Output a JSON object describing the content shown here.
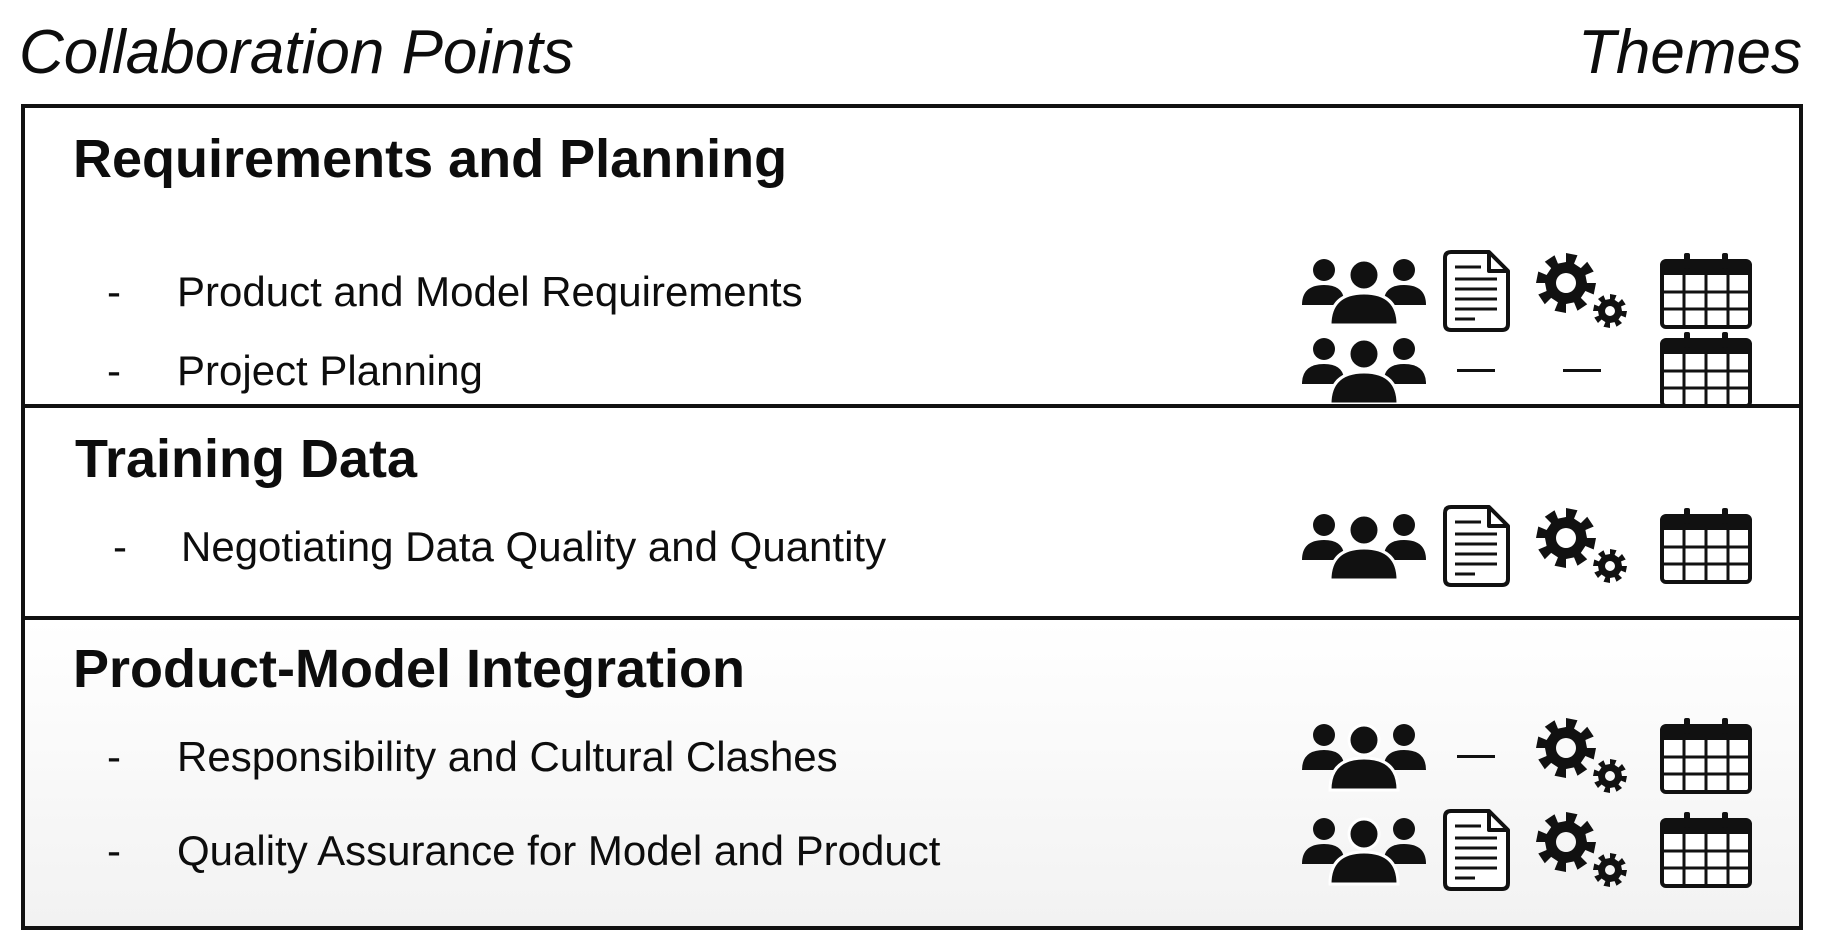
{
  "header": {
    "left_title": "Collaboration Points",
    "right_title": "Themes"
  },
  "sections": [
    {
      "title": "Requirements and Planning",
      "items": [
        {
          "bullet": "-",
          "label": "Product and Model Requirements",
          "themes": {
            "people": true,
            "document": true,
            "gears": true,
            "calendar": true
          }
        },
        {
          "bullet": "-",
          "label": "Project Planning",
          "themes": {
            "people": true,
            "document": false,
            "gears": false,
            "calendar": true
          }
        }
      ]
    },
    {
      "title": "Training Data",
      "items": [
        {
          "bullet": "-",
          "label": "Negotiating Data Quality and Quantity",
          "themes": {
            "people": true,
            "document": true,
            "gears": true,
            "calendar": true
          }
        }
      ]
    },
    {
      "title": "Product-Model Integration",
      "items": [
        {
          "bullet": "-",
          "label": "Responsibility and Cultural Clashes",
          "themes": {
            "people": true,
            "document": false,
            "gears": true,
            "calendar": true
          }
        },
        {
          "bullet": "-",
          "label": "Quality Assurance for Model and Product",
          "themes": {
            "people": true,
            "document": true,
            "gears": true,
            "calendar": true
          }
        }
      ]
    }
  ],
  "icons": {
    "people": "people-group-icon",
    "document": "document-icon",
    "gears": "gears-icon",
    "calendar": "calendar-icon",
    "absent": "dash-icon"
  }
}
